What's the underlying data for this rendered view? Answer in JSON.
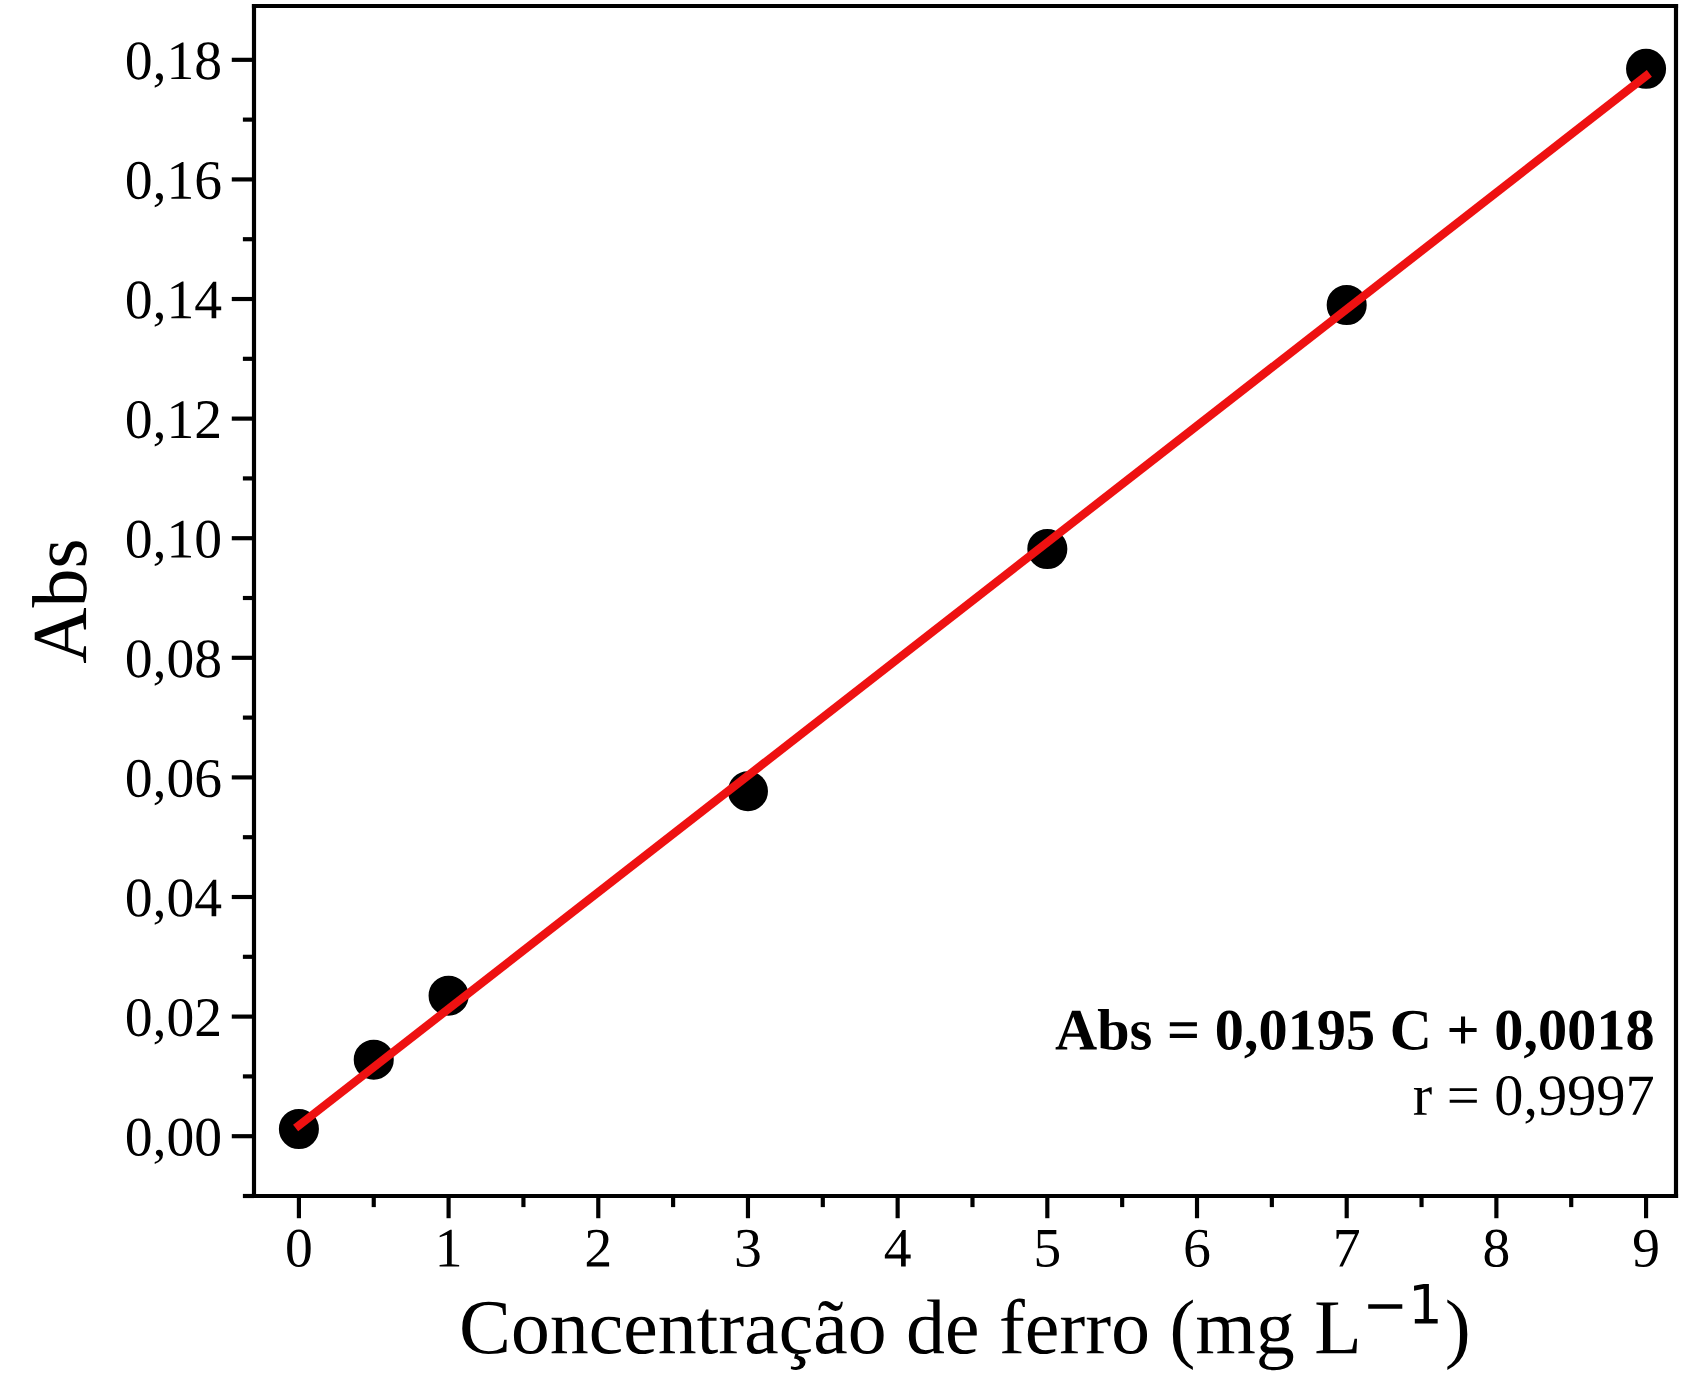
{
  "chart_data": {
    "type": "scatter",
    "xlabel": "Concentração de ferro (mg L$^{−1}$)",
    "ylabel": "Abs",
    "xlim": [
      -0.3,
      9.2
    ],
    "ylim": [
      -0.01,
      0.189
    ],
    "xticks": [
      0,
      1,
      2,
      3,
      4,
      5,
      6,
      7,
      8,
      9
    ],
    "yticks": [
      {
        "value": 0,
        "label": "0,00"
      },
      {
        "value": 0.02,
        "label": "0,02"
      },
      {
        "value": 0.04,
        "label": "0,04"
      },
      {
        "value": 0.06,
        "label": "0,06"
      },
      {
        "value": 0.08,
        "label": "0,08"
      },
      {
        "value": 0.1,
        "label": "0,10"
      },
      {
        "value": 0.12,
        "label": "0,12"
      },
      {
        "value": 0.14,
        "label": "0,14"
      },
      {
        "value": 0.16,
        "label": "0,16"
      },
      {
        "value": 0.18,
        "label": "0,18"
      }
    ],
    "grid": false,
    "legend": false,
    "series": [
      {
        "type": "line",
        "color": "#ee1111",
        "x": [
          0,
          9
        ],
        "values": [
          0.0018,
          0.1773
        ]
      },
      {
        "marker": "circle",
        "color": "#000000",
        "x": [
          0,
          0.5,
          1,
          3,
          5,
          7,
          9
        ],
        "values": [
          0.0012,
          0.0128,
          0.0235,
          0.0577,
          0.0982,
          0.139,
          0.1785
        ]
      }
    ],
    "annotations": [
      "Abs = 0,0195 C + 0,0018",
      "r = 0,9997"
    ]
  }
}
